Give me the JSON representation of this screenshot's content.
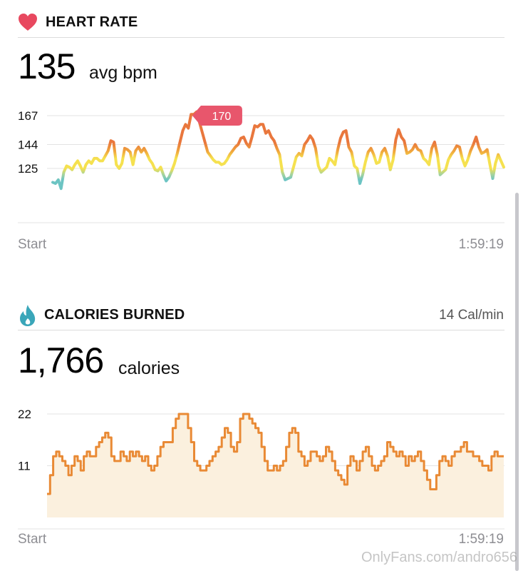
{
  "heart_rate": {
    "title": "HEART RATE",
    "average_value": "135",
    "average_unit": "avg bpm",
    "peak_label": "170",
    "start_label": "Start",
    "end_label": "1:59:19",
    "icon": "heart-icon",
    "colors": {
      "icon": "#e8485f",
      "peak_badge": "#e8566c",
      "high": "#e9773d",
      "mid": "#f5e14f",
      "low": "#6cc4c3"
    }
  },
  "calories": {
    "title": "CALORIES BURNED",
    "rate": "14 Cal/min",
    "total_value": "1,766",
    "total_unit": "calories",
    "start_label": "Start",
    "end_label": "1:59:19",
    "icon": "flame-icon",
    "colors": {
      "icon": "#3aa6b9",
      "line": "#e98a35",
      "fill": "#fbf0de"
    }
  },
  "watermark": "OnlyFans.com/andro656",
  "chart_data": [
    {
      "type": "line",
      "title": "HEART RATE",
      "xlabel": "",
      "ylabel": "",
      "x_ticks": [
        "Start",
        "1:59:19"
      ],
      "y_ticks": [
        125,
        144,
        167
      ],
      "ylim": [
        100,
        167
      ],
      "grid": true,
      "annotation": {
        "label": "170",
        "value": 170
      },
      "series": [
        {
          "values": [
            114,
            113,
            116,
            109,
            122,
            127,
            126,
            124,
            128,
            131,
            127,
            122,
            128,
            131,
            129,
            133,
            133,
            131,
            131,
            135,
            139,
            147,
            146,
            128,
            125,
            129,
            141,
            140,
            138,
            128,
            139,
            142,
            138,
            141,
            137,
            132,
            129,
            124,
            123,
            126,
            120,
            115,
            118,
            123,
            129,
            137,
            146,
            155,
            160,
            157,
            168,
            168,
            170,
            162,
            154,
            146,
            138,
            135,
            132,
            130,
            130,
            128,
            129,
            132,
            136,
            139,
            142,
            144,
            149,
            150,
            145,
            142,
            150,
            159,
            158,
            160,
            160,
            153,
            155,
            150,
            147,
            141,
            136,
            122,
            116,
            117,
            118,
            126,
            134,
            137,
            135,
            144,
            147,
            151,
            148,
            141,
            127,
            122,
            124,
            126,
            133,
            131,
            128,
            140,
            149,
            154,
            155,
            142,
            138,
            127,
            125,
            113,
            120,
            130,
            138,
            141,
            136,
            129,
            130,
            138,
            141,
            135,
            124,
            132,
            148,
            156,
            150,
            147,
            137,
            138,
            140,
            144,
            140,
            139,
            133,
            131,
            128,
            141,
            146,
            136,
            120,
            122,
            124,
            132,
            136,
            139,
            143,
            142,
            133,
            127,
            132,
            139,
            144,
            150,
            142,
            137,
            138,
            140,
            128,
            117,
            129,
            136,
            131,
            126
          ]
        }
      ]
    },
    {
      "type": "area",
      "title": "CALORIES BURNED",
      "xlabel": "",
      "ylabel": "",
      "x_ticks": [
        "Start",
        "1:59:19"
      ],
      "y_ticks": [
        11,
        22
      ],
      "ylim": [
        0,
        22
      ],
      "grid": true,
      "series": [
        {
          "values": [
            5,
            9,
            13,
            14,
            13,
            12,
            11,
            9,
            11,
            13,
            12,
            10,
            13,
            14,
            13,
            13,
            15,
            16,
            17,
            18,
            17,
            13,
            12,
            12,
            14,
            13,
            12,
            14,
            13,
            14,
            13,
            12,
            13,
            11,
            10,
            11,
            13,
            15,
            16,
            16,
            16,
            19,
            21,
            22,
            22,
            22,
            19,
            16,
            12,
            11,
            10,
            10,
            11,
            12,
            13,
            14,
            15,
            17,
            19,
            18,
            15,
            14,
            16,
            21,
            22,
            22,
            21,
            20,
            19,
            18,
            15,
            12,
            10,
            10,
            11,
            10,
            11,
            12,
            15,
            18,
            19,
            18,
            14,
            13,
            11,
            12,
            14,
            14,
            13,
            12,
            13,
            15,
            14,
            12,
            10,
            9,
            8,
            7,
            11,
            13,
            12,
            10,
            12,
            14,
            15,
            13,
            11,
            10,
            11,
            12,
            13,
            16,
            15,
            14,
            13,
            14,
            13,
            11,
            13,
            12,
            13,
            14,
            12,
            10,
            8,
            6,
            6,
            9,
            12,
            13,
            12,
            11,
            13,
            14,
            14,
            15,
            16,
            14,
            14,
            13,
            13,
            12,
            11,
            11,
            10,
            13,
            14,
            13,
            13
          ]
        }
      ]
    }
  ]
}
